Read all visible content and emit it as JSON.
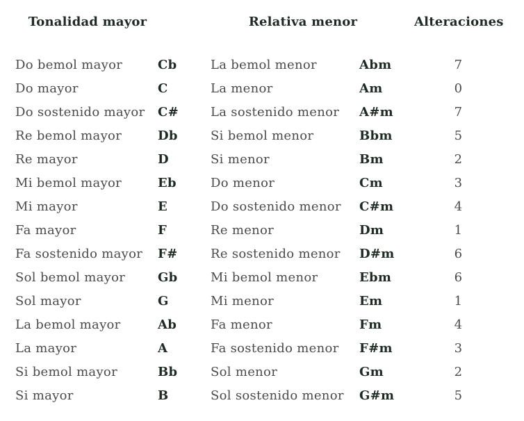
{
  "table": {
    "headers": [
      {
        "label": "Tonalidad mayor"
      },
      {
        "label": "Relativa menor"
      },
      {
        "label": "Alteraciones"
      }
    ],
    "rows": [
      {
        "major": "Do bemol mayor",
        "major_abbr": "Cb",
        "minor": "La bemol menor",
        "minor_abbr": "Abm",
        "alterations": "7"
      },
      {
        "major": "Do mayor",
        "major_abbr": "C",
        "minor": "La menor",
        "minor_abbr": "Am",
        "alterations": "0"
      },
      {
        "major": "Do sostenido mayor",
        "major_abbr": "C#",
        "minor": "La sostenido menor",
        "minor_abbr": "A#m",
        "alterations": "7"
      },
      {
        "major": "Re bemol mayor",
        "major_abbr": "Db",
        "minor": "Si bemol menor",
        "minor_abbr": "Bbm",
        "alterations": "5"
      },
      {
        "major": "Re mayor",
        "major_abbr": "D",
        "minor": "Si menor",
        "minor_abbr": "Bm",
        "alterations": "2"
      },
      {
        "major": "Mi bemol mayor",
        "major_abbr": "Eb",
        "minor": "Do menor",
        "minor_abbr": "Cm",
        "alterations": "3"
      },
      {
        "major": "Mi mayor",
        "major_abbr": "E",
        "minor": "Do sostenido menor",
        "minor_abbr": "C#m",
        "alterations": "4"
      },
      {
        "major": "Fa mayor",
        "major_abbr": "F",
        "minor": "Re menor",
        "minor_abbr": "Dm",
        "alterations": "1"
      },
      {
        "major": "Fa sostenido mayor",
        "major_abbr": "F#",
        "minor": "Re sostenido menor",
        "minor_abbr": "D#m",
        "alterations": "6"
      },
      {
        "major": "Sol bemol mayor",
        "major_abbr": "Gb",
        "minor": "Mi bemol menor",
        "minor_abbr": "Ebm",
        "alterations": "6"
      },
      {
        "major": "Sol mayor",
        "major_abbr": "G",
        "minor": "Mi menor",
        "minor_abbr": "Em",
        "alterations": "1"
      },
      {
        "major": "La bemol mayor",
        "major_abbr": "Ab",
        "minor": "Fa menor",
        "minor_abbr": "Fm",
        "alterations": "4"
      },
      {
        "major": "La mayor",
        "major_abbr": "A",
        "minor": "Fa sostenido menor",
        "minor_abbr": "F#m",
        "alterations": "3"
      },
      {
        "major": "Si bemol mayor",
        "major_abbr": "Bb",
        "minor": "Sol menor",
        "minor_abbr": "Gm",
        "alterations": "2"
      },
      {
        "major": "Si mayor",
        "major_abbr": "B",
        "minor": "Sol sostenido menor",
        "minor_abbr": "G#m",
        "alterations": "5"
      }
    ]
  },
  "colors": {
    "text": "#4a4a4a",
    "strong": "#1e2a23",
    "background": "#ffffff"
  }
}
